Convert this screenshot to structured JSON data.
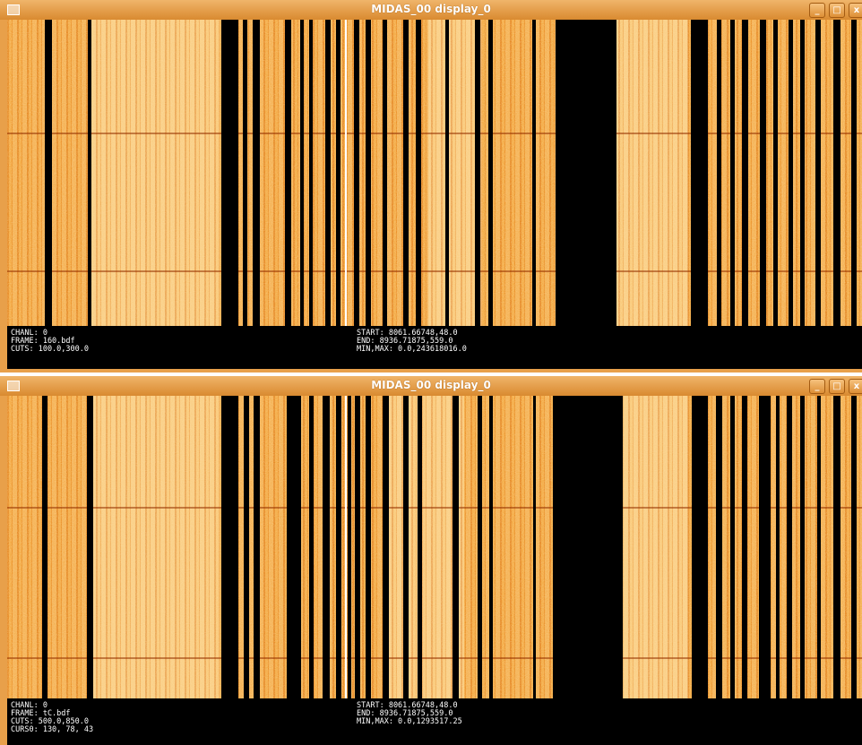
{
  "windows": [
    {
      "title": "MIDAS_00 display_0",
      "info_left": [
        "CHANL: 0",
        "FRAME: 160.bdf",
        "CUTS: 100.0,300.0"
      ],
      "info_right": [
        "START: 8061.66748,48.0",
        "END: 8936.71875,559.0",
        "MIN,MAX: 0.0,243618016.0"
      ]
    },
    {
      "title": "MIDAS_00 display_0",
      "info_left": [
        "CHANL: 0",
        "FRAME: tC.bdf",
        "CUTS: 500.0,850.0",
        "CURS0:  130, 78, 43"
      ],
      "info_right": [
        "START: 8061.66748,48.0",
        "END: 8936.71875,559.0",
        "MIN,MAX: 0.0,1293517.25"
      ]
    }
  ]
}
